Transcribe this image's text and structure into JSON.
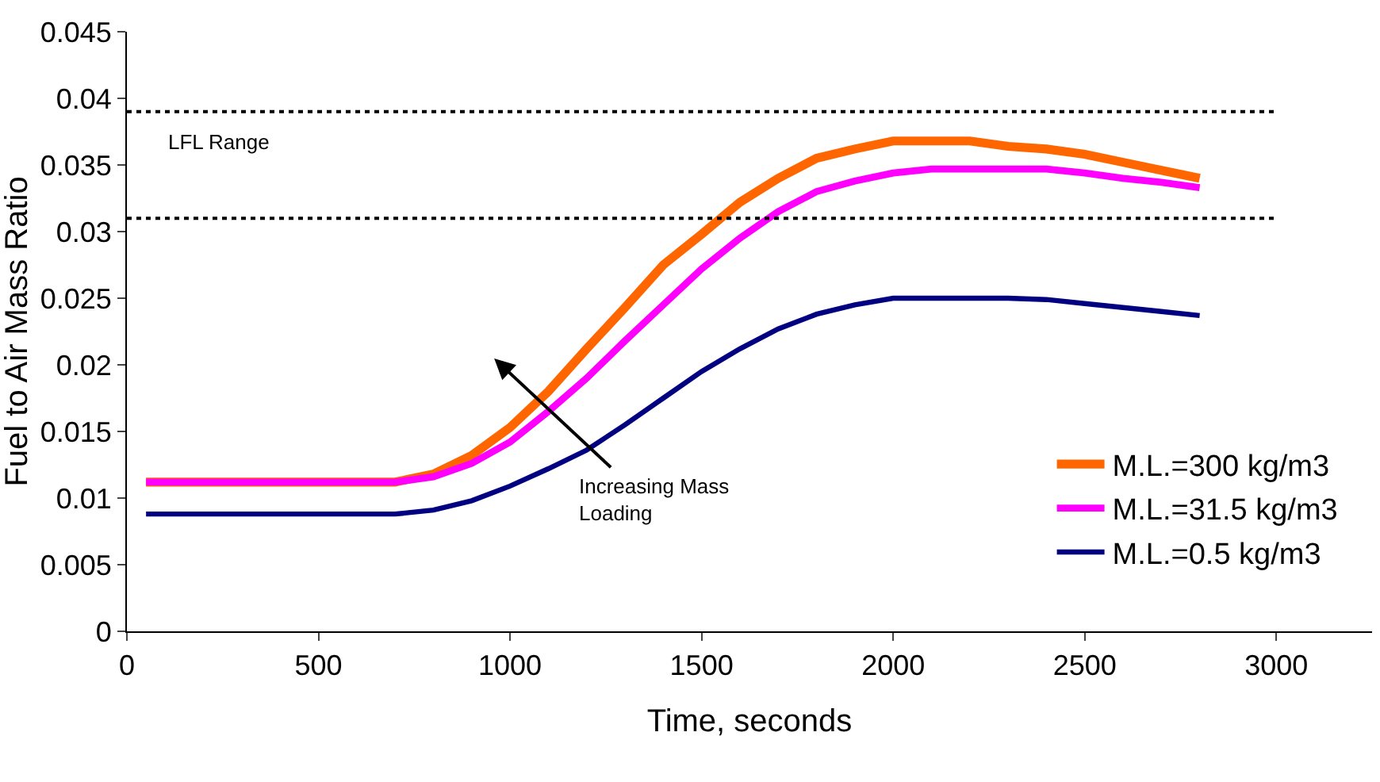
{
  "chart_data": {
    "type": "line",
    "xlabel": "Time, seconds",
    "ylabel": "Fuel to Air Mass Ratio",
    "xlim": [
      0,
      3250
    ],
    "xticks": [
      0,
      500,
      1000,
      1500,
      2000,
      2500,
      3000
    ],
    "ylim": [
      0,
      0.045
    ],
    "yticks": [
      0,
      0.005,
      0.01,
      0.015,
      0.02,
      0.025,
      0.03,
      0.035,
      0.04,
      0.045
    ],
    "grid": false,
    "legend": "bottom right",
    "marker": "none",
    "line_style": "solid",
    "x": [
      50,
      700,
      800,
      900,
      1000,
      1100,
      1200,
      1300,
      1400,
      1500,
      1600,
      1700,
      1800,
      1900,
      2000,
      2100,
      2200,
      2300,
      2400,
      2500,
      2600,
      2700,
      2800
    ],
    "series": [
      {
        "name": "M.L.=300 kg/m3",
        "color": "#ff6600",
        "values": [
          0.0112,
          0.0112,
          0.0118,
          0.0132,
          0.0153,
          0.018,
          0.0212,
          0.0243,
          0.0275,
          0.0298,
          0.0322,
          0.034,
          0.0355,
          0.0362,
          0.0368,
          0.0368,
          0.0368,
          0.0364,
          0.0362,
          0.0358,
          0.0352,
          0.0346,
          0.034
        ]
      },
      {
        "name": "M.L.=31.5 kg/m3",
        "color": "#ff00ff",
        "values": [
          0.0112,
          0.0112,
          0.0116,
          0.0126,
          0.0142,
          0.0165,
          0.019,
          0.0218,
          0.0245,
          0.0272,
          0.0295,
          0.0315,
          0.033,
          0.0338,
          0.0344,
          0.0347,
          0.0347,
          0.0347,
          0.0347,
          0.0344,
          0.034,
          0.0337,
          0.0333
        ]
      },
      {
        "name": "M.L.=0.5 kg/m3",
        "color": "#000080",
        "values": [
          0.0088,
          0.0088,
          0.0091,
          0.0098,
          0.0109,
          0.0122,
          0.0136,
          0.0155,
          0.0175,
          0.0195,
          0.0212,
          0.0227,
          0.0238,
          0.0245,
          0.025,
          0.025,
          0.025,
          0.025,
          0.0249,
          0.0246,
          0.0243,
          0.024,
          0.0237
        ]
      }
    ],
    "ref_lines": [
      {
        "axis": "y",
        "value": 0.039,
        "label": "LFL Range",
        "line_style": "dotted",
        "color": "#000000"
      },
      {
        "axis": "y",
        "value": 0.031,
        "line_style": "dotted",
        "color": "#000000"
      }
    ],
    "annotations": [
      "Increasing Mass Loading"
    ]
  }
}
